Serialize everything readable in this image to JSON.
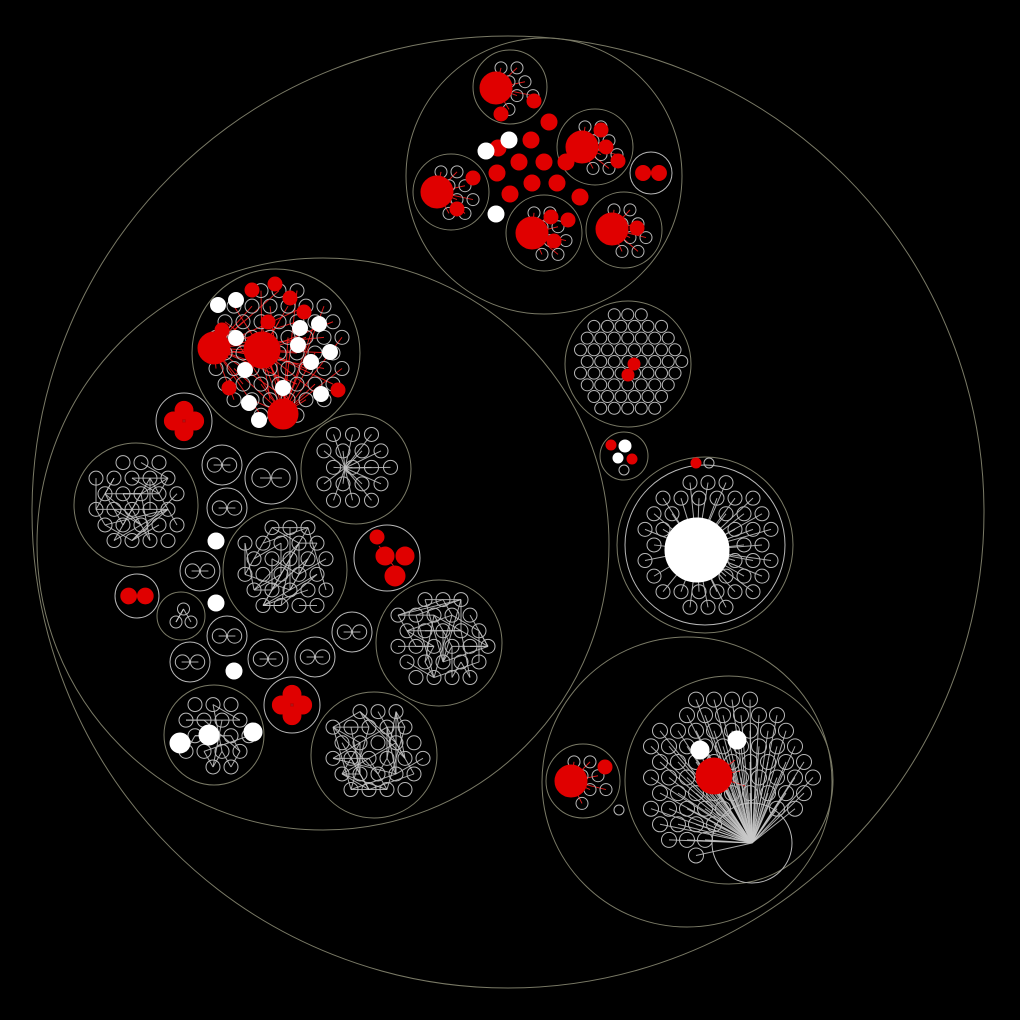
{
  "diagram": {
    "type": "nested circle packing of node-link graphs",
    "background": "#000000",
    "colors": {
      "container_stroke": "#7a7a66",
      "node_outline": "#b8b8b8",
      "edge_default": "#c8c8c8",
      "highlight_red": "#e00000",
      "highlight_white": "#ffffff",
      "edge_red": "#ff2020"
    },
    "node_fill_legend": [
      "empty outline",
      "red",
      "white"
    ],
    "groups": [
      {
        "id": "root",
        "type": "container"
      },
      {
        "id": "left-cluster",
        "type": "container",
        "parent": "root"
      },
      {
        "id": "top-cluster",
        "type": "container",
        "parent": "root"
      },
      {
        "id": "grid-cluster",
        "type": "container",
        "parent": "root",
        "red_nodes": 2
      },
      {
        "id": "mini-cluster",
        "type": "container",
        "parent": "root",
        "red_nodes": 2,
        "white_nodes": 2
      },
      {
        "id": "white-hub-cluster",
        "type": "container",
        "parent": "root",
        "white_nodes": 1
      },
      {
        "id": "bottom-right-cluster",
        "type": "container",
        "parent": "root"
      },
      {
        "id": "fan-cluster",
        "type": "container",
        "parent": "bottom-right-cluster",
        "red_nodes": 1,
        "white_nodes": 2
      },
      {
        "id": "red-fan-cluster",
        "type": "container",
        "parent": "left-cluster",
        "red_nodes": 11,
        "white_nodes": 13
      }
    ]
  }
}
